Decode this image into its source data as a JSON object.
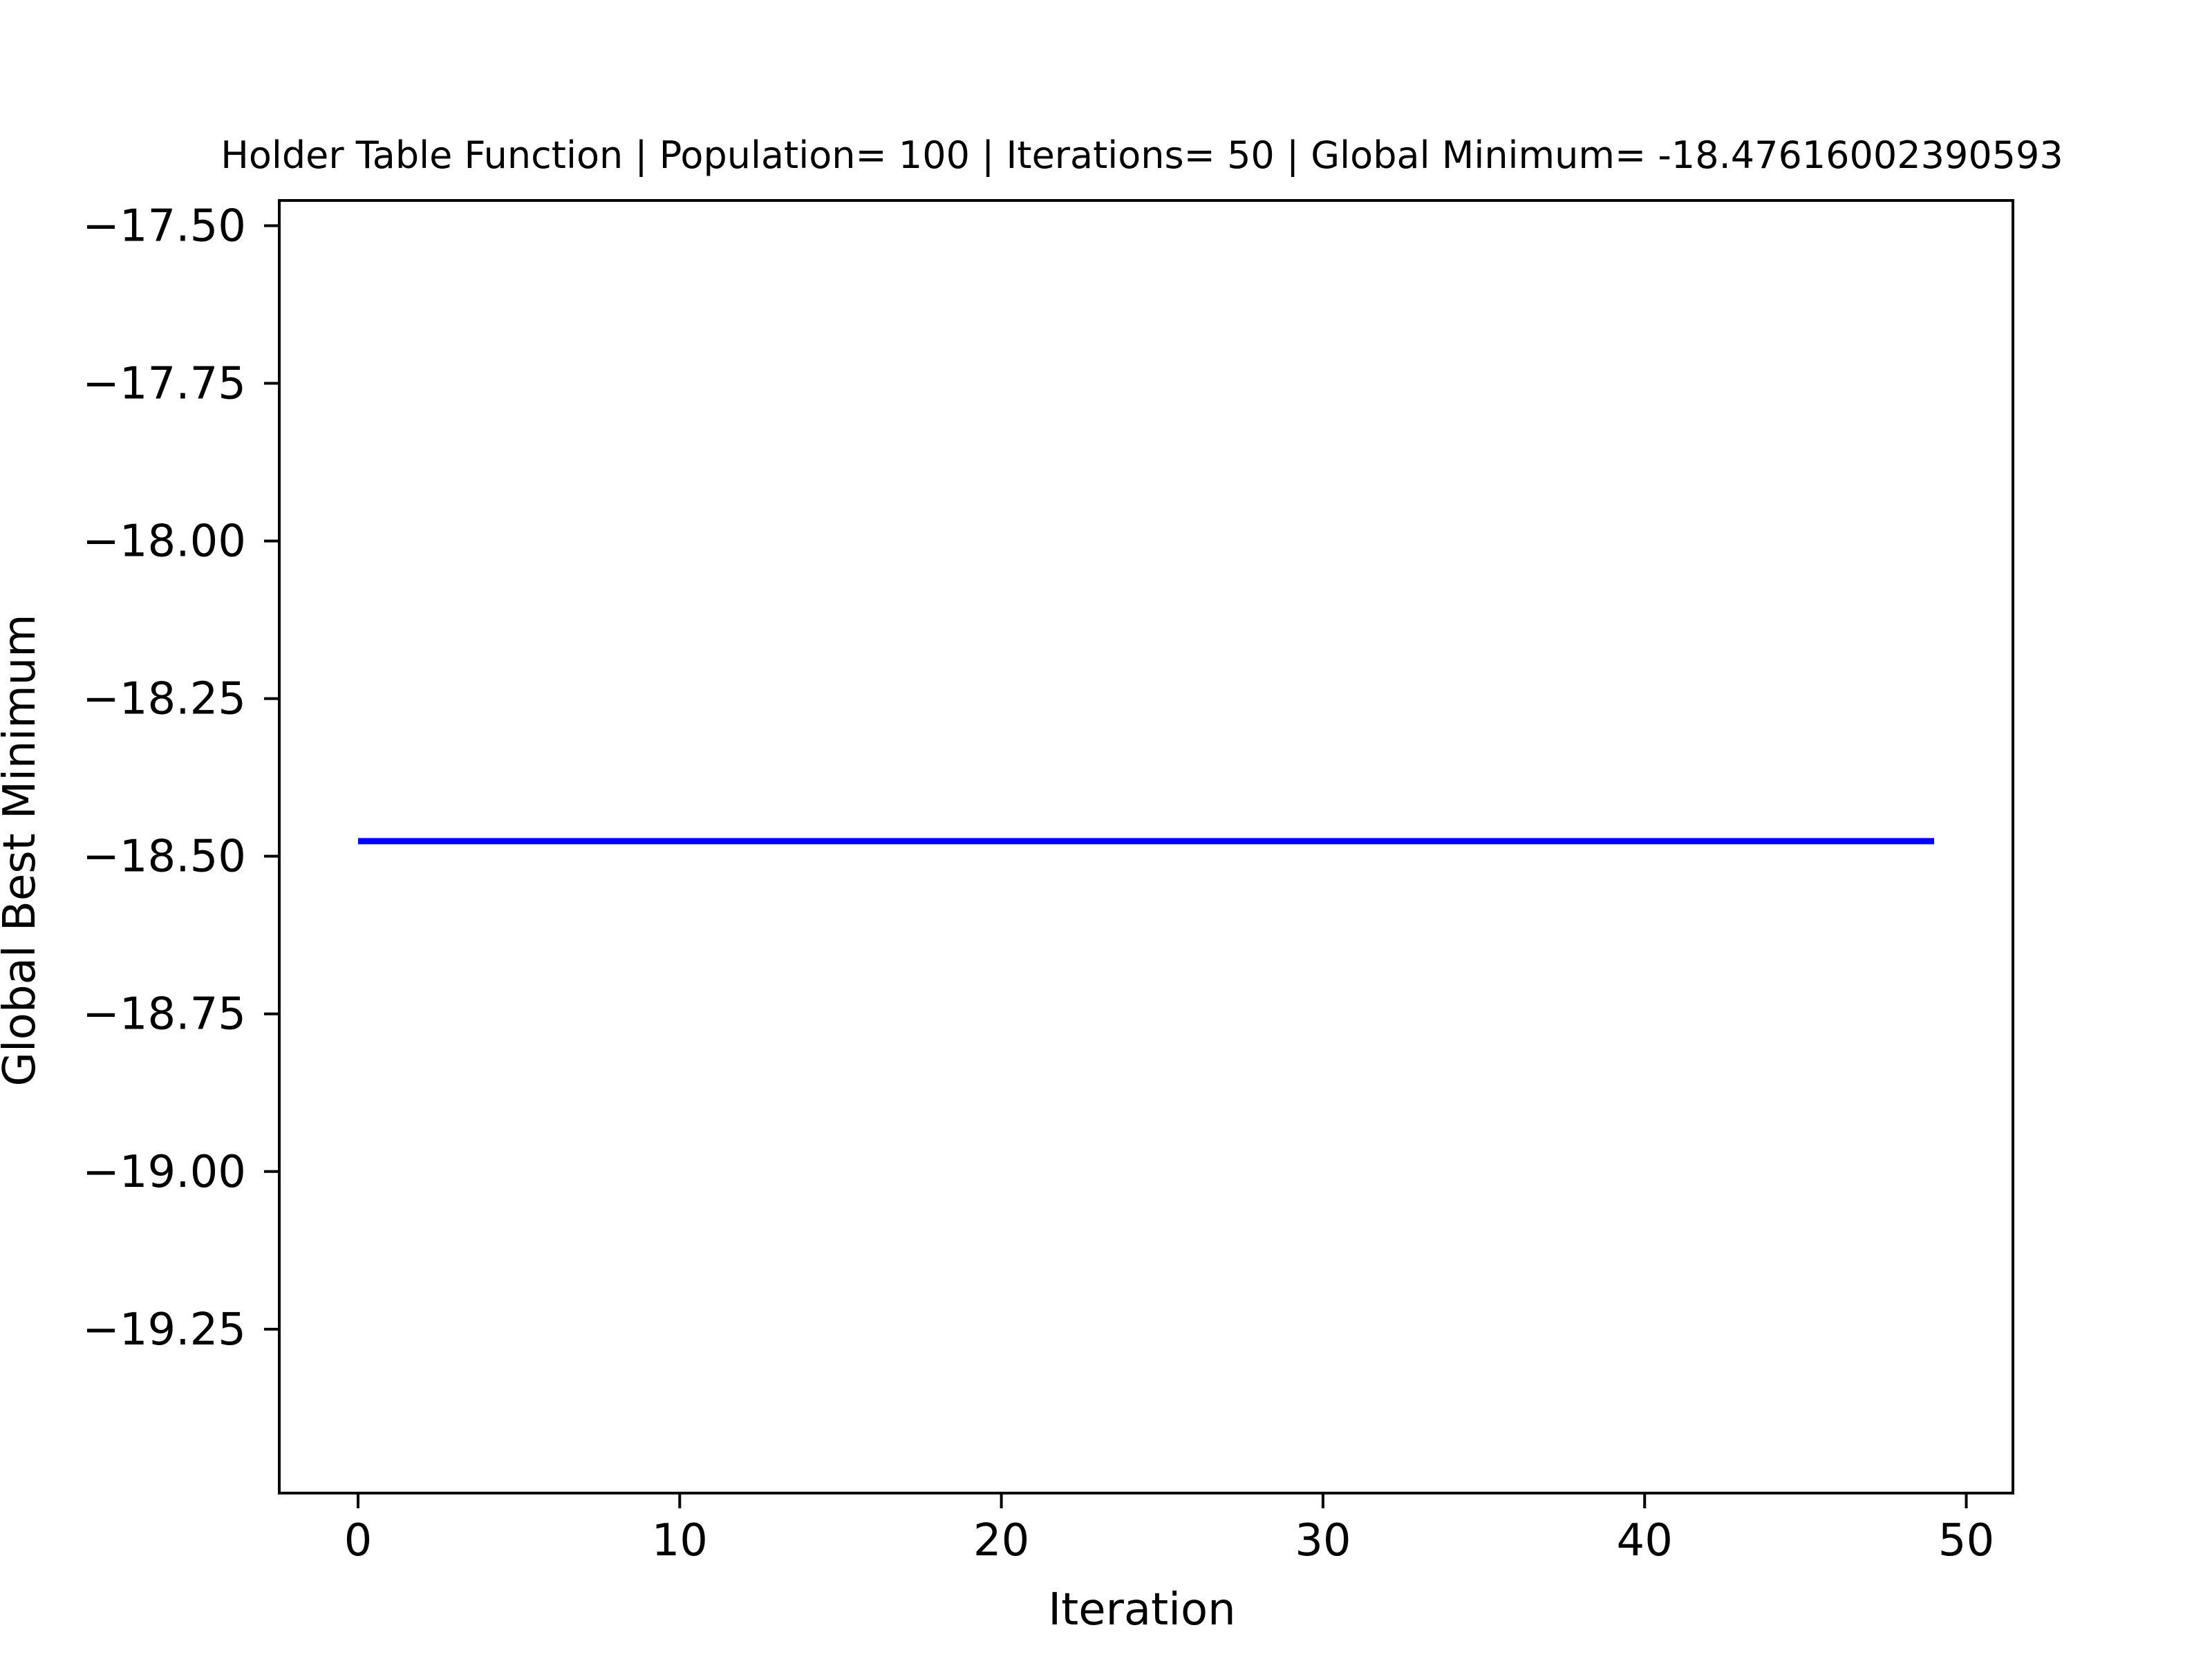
{
  "chart_data": {
    "type": "line",
    "title": "Holder Table Function | Population= 100 | Iterations= 50 | Global Minimum= -18.47616002390593",
    "xlabel": "Iteration",
    "ylabel": "Global Best Minimum",
    "xlim": [
      -2.45,
      51.45
    ],
    "ylim": [
      -19.51,
      -17.46
    ],
    "xticks": [
      0,
      10,
      20,
      30,
      40,
      50
    ],
    "xtick_labels": [
      "0",
      "10",
      "20",
      "30",
      "40",
      "50"
    ],
    "yticks": [
      -17.5,
      -17.75,
      -18.0,
      -18.25,
      -18.5,
      -18.75,
      -19.0,
      -19.25
    ],
    "ytick_labels": [
      "−17.50",
      "−17.75",
      "−18.00",
      "−18.25",
      "−18.50",
      "−18.75",
      "−19.00",
      "−19.25"
    ],
    "grid": false,
    "legend": "none",
    "series": [
      {
        "color": "#0000ff",
        "x": [
          0,
          49
        ],
        "y": [
          -18.47616002390593,
          -18.47616002390593
        ]
      }
    ]
  }
}
